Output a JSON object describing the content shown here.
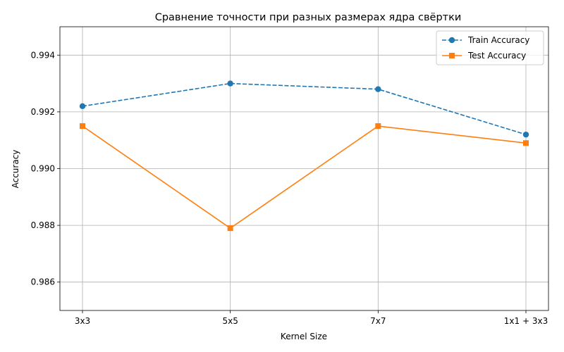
{
  "chart_data": {
    "type": "line",
    "title": "Сравнение точности при разных размерах ядра свёртки",
    "xlabel": "Kernel Size",
    "ylabel": "Accuracy",
    "categories": [
      "3x3",
      "5x5",
      "7x7",
      "1x1 + 3x3"
    ],
    "ylim": [
      0.985,
      0.995
    ],
    "yticks": [
      "0.986",
      "0.988",
      "0.990",
      "0.992",
      "0.994"
    ],
    "grid": true,
    "legend_position": "top-right",
    "series": [
      {
        "name": "Train Accuracy",
        "values": [
          0.9922,
          0.993,
          0.9928,
          0.9912
        ],
        "color": "#1f77b4",
        "marker": "circle",
        "linestyle": "dashed"
      },
      {
        "name": "Test Accuracy",
        "values": [
          0.9915,
          0.9879,
          0.9915,
          0.9909
        ],
        "color": "#ff7f0e",
        "marker": "square",
        "linestyle": "solid"
      }
    ]
  }
}
